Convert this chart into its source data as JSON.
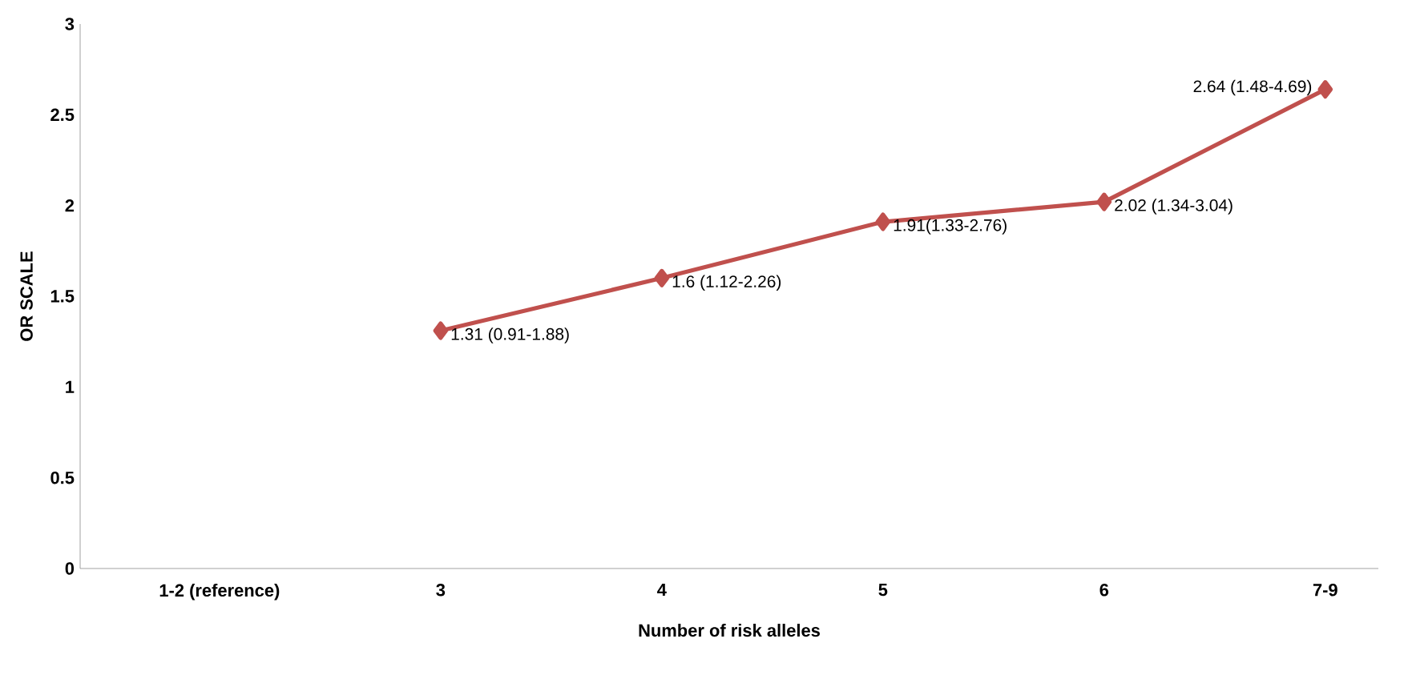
{
  "chart_data": {
    "type": "line",
    "xlabel": "Number of risk alleles",
    "ylabel": "OR SCALE",
    "categories": [
      "1-2 (reference)",
      "3",
      "4",
      "5",
      "6",
      "7-9"
    ],
    "series": [
      {
        "color": "#c0504d",
        "values": [
          null,
          1.31,
          1.6,
          1.91,
          2.02,
          2.64
        ],
        "value_labels": [
          null,
          "1.31 (0.91-1.88)",
          "1.6 (1.12-2.26)",
          "1.91(1.33-2.76)",
          "2.02 (1.34-3.04)",
          "2.64 (1.48-4.69)"
        ]
      }
    ],
    "ylim": [
      0,
      3
    ],
    "yticks": [
      0,
      0.5,
      1,
      1.5,
      2,
      2.5,
      3
    ],
    "marker": "diamond",
    "line_style": "solid"
  }
}
